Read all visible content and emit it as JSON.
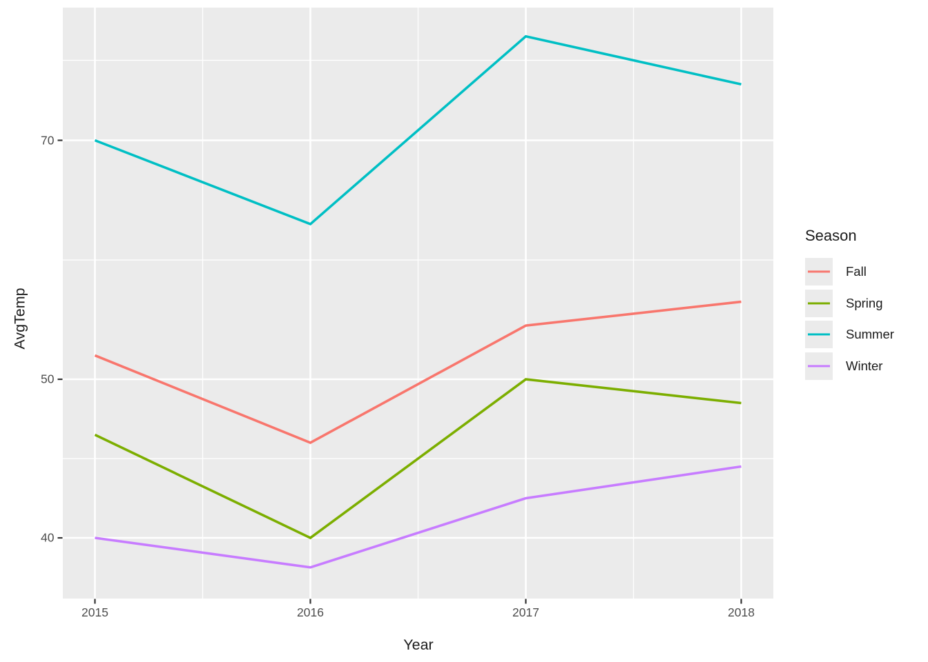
{
  "figure": {
    "background": "#FFFFFF",
    "panel_background": "#EBEBEB",
    "gridline_color": "#FFFFFF",
    "tick_mark_color": "#333333",
    "tick_label_color": "#4D4D4D",
    "title_color": "#1A1A1A"
  },
  "chart_data": {
    "type": "line",
    "title": "",
    "xlabel": "Year",
    "ylabel": "AvgTemp",
    "categories": [
      2015,
      2016,
      2017,
      2018
    ],
    "series": [
      {
        "name": "Fall",
        "color": "#F8766D",
        "values": [
          52,
          46,
          54.5,
          56.5
        ]
      },
      {
        "name": "Spring",
        "color": "#7CAE00",
        "values": [
          46.5,
          40,
          50,
          48.5
        ]
      },
      {
        "name": "Summer",
        "color": "#00BFC4",
        "values": [
          70,
          63,
          76.5,
          73.5
        ]
      },
      {
        "name": "Winter",
        "color": "#C77CFF",
        "values": [
          40,
          38,
          42.5,
          44.5
        ]
      }
    ],
    "legend": {
      "title": "Season",
      "position": "right",
      "entries": [
        "Fall",
        "Spring",
        "Summer",
        "Winter"
      ]
    },
    "x_axis": {
      "tick_labels": [
        "2015",
        "2016",
        "2017",
        "2018"
      ],
      "grid": true
    },
    "y_axis": {
      "tick_labels": [
        "70",
        "50",
        "40"
      ],
      "major_breaks": [
        70,
        50,
        40
      ],
      "minor_breaks": [
        75,
        60,
        45
      ],
      "range": [
        36,
        78
      ],
      "grid": true
    }
  }
}
